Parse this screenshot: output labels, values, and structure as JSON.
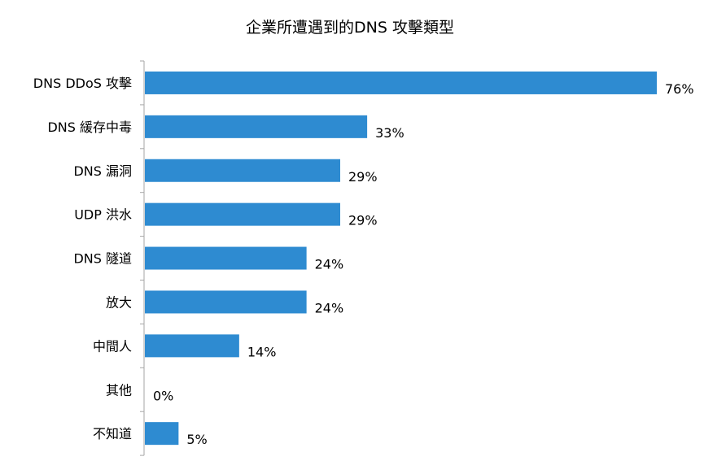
{
  "chart_data": {
    "type": "bar",
    "orientation": "horizontal",
    "title": "企業所遭遇到的DNS 攻擊類型",
    "categories": [
      "DNS DDoS 攻擊",
      "DNS 緩存中毒",
      "DNS 漏洞",
      "UDP 洪水",
      "DNS 隧道",
      "放大",
      "中間人",
      "其他",
      "不知道"
    ],
    "values": [
      76,
      33,
      29,
      29,
      24,
      24,
      14,
      0,
      5
    ],
    "value_labels": [
      "76%",
      "33%",
      "29%",
      "29%",
      "24%",
      "24%",
      "14%",
      "0%",
      "5%"
    ],
    "unit": "%",
    "xlim": [
      0,
      76
    ],
    "bar_color": "#2e8bd1",
    "axis_color": "#a6a6a6",
    "grid": false,
    "legend": "none"
  }
}
